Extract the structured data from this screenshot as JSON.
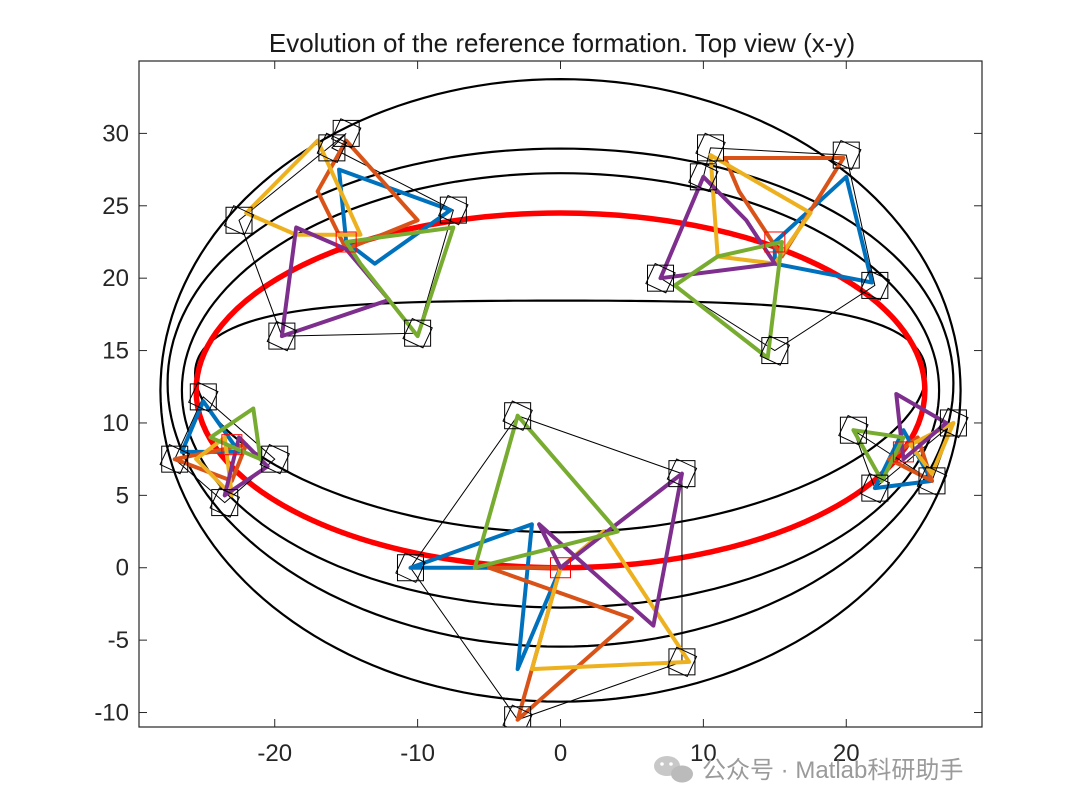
{
  "chart_data": {
    "type": "line",
    "title": "Evolution of the reference formation. Top view (x-y)",
    "xlabel": "",
    "ylabel": "",
    "xlim": [
      -29.5,
      29.5
    ],
    "ylim": [
      -11,
      35
    ],
    "x_ticks": [
      -20,
      -10,
      0,
      10,
      20
    ],
    "y_ticks": [
      -10,
      -5,
      0,
      5,
      10,
      15,
      20,
      25,
      30
    ],
    "x_tick_labels": [
      "-20",
      "-10",
      "0",
      "10",
      "20"
    ],
    "y_tick_labels": [
      "-10",
      "-5",
      "0",
      "5",
      "10",
      "15",
      "20",
      "25",
      "30"
    ],
    "grid": false,
    "reference_path": {
      "shape": "ellipse",
      "center": [
        0,
        12.25
      ],
      "radius_x": 25.5,
      "radius_y": 12.25,
      "color": "#ff0000"
    },
    "trajectories": [
      {
        "center": [
          0,
          12.25
        ],
        "rx": 25.5,
        "ry": 8.0,
        "dx": -1.0,
        "dy": 1.8
      },
      {
        "center": [
          0,
          12.25
        ],
        "rx": 26.5,
        "ry": 15.0,
        "dx": 0.0,
        "dy": 0.0
      },
      {
        "center": [
          0,
          12.25
        ],
        "rx": 27.5,
        "ry": 17.2,
        "dx": 0.0,
        "dy": 0.5
      },
      {
        "center": [
          0,
          12.25
        ],
        "rx": 28.0,
        "ry": 21.5,
        "dx": 0.0,
        "dy": 0.0
      }
    ],
    "formation_snapshots": [
      {
        "center": [
          -15.0,
          22.5
        ],
        "vehicles": [
          [
            -16.0,
            29.0
          ],
          [
            -7.5,
            24.7
          ],
          [
            -10.0,
            16.2
          ],
          [
            -19.5,
            16.0
          ],
          [
            -22.5,
            24.0
          ],
          [
            -15.0,
            30.0
          ]
        ],
        "polygons": [
          {
            "color": "#0072bd",
            "vertices": [
              [
                -15.5,
                27.5
              ],
              [
                -7.7,
                24.7
              ],
              [
                -13.0,
                21.0
              ],
              [
                -15.0,
                22.5
              ]
            ]
          },
          {
            "color": "#d95319",
            "vertices": [
              [
                -15.0,
                29.5
              ],
              [
                -10.0,
                24.0
              ],
              [
                -15.0,
                22.0
              ],
              [
                -17.0,
                26.0
              ]
            ]
          },
          {
            "color": "#edb120",
            "vertices": [
              [
                -22.0,
                24.5
              ],
              [
                -17.0,
                29.5
              ],
              [
                -14.0,
                23.0
              ],
              [
                -18.5,
                23.0
              ]
            ]
          },
          {
            "color": "#7e2f8e",
            "vertices": [
              [
                -18.5,
                23.5
              ],
              [
                -19.5,
                16.0
              ],
              [
                -12.0,
                18.5
              ],
              [
                -15.0,
                22.0
              ]
            ]
          },
          {
            "color": "#77ac30",
            "vertices": [
              [
                -15.0,
                22.5
              ],
              [
                -7.5,
                23.5
              ],
              [
                -10.0,
                16.0
              ],
              [
                -14.0,
                21.0
              ]
            ]
          }
        ]
      },
      {
        "center": [
          15.0,
          22.5
        ],
        "vehicles": [
          [
            10.5,
            29.0
          ],
          [
            20.0,
            28.5
          ],
          [
            22.0,
            19.5
          ],
          [
            15.0,
            15.0
          ],
          [
            7.0,
            20.0
          ],
          [
            10.0,
            27.0
          ]
        ],
        "polygons": [
          {
            "color": "#0072bd",
            "vertices": [
              [
                15.0,
                22.5
              ],
              [
                20.0,
                27.0
              ],
              [
                21.8,
                19.7
              ],
              [
                15.0,
                21.0
              ]
            ]
          },
          {
            "color": "#d95319",
            "vertices": [
              [
                11.5,
                28.3
              ],
              [
                19.8,
                28.3
              ],
              [
                15.5,
                21.5
              ],
              [
                12.5,
                26.0
              ]
            ]
          },
          {
            "color": "#edb120",
            "vertices": [
              [
                10.5,
                28.5
              ],
              [
                17.5,
                24.5
              ],
              [
                15.0,
                21.0
              ],
              [
                11.0,
                21.5
              ]
            ]
          },
          {
            "color": "#7e2f8e",
            "vertices": [
              [
                10.0,
                27.0
              ],
              [
                7.0,
                20.0
              ],
              [
                15.0,
                21.0
              ],
              [
                13.0,
                24.0
              ]
            ]
          },
          {
            "color": "#77ac30",
            "vertices": [
              [
                8.0,
                19.5
              ],
              [
                14.5,
                14.5
              ],
              [
                15.5,
                22.5
              ],
              [
                11.0,
                21.5
              ]
            ]
          }
        ]
      },
      {
        "center": [
          -23.0,
          8.5
        ],
        "vehicles": [
          [
            -25.0,
            11.8
          ],
          [
            -20.0,
            7.5
          ],
          [
            -23.5,
            4.5
          ],
          [
            -27.0,
            7.5
          ]
        ],
        "polygons": [
          {
            "color": "#0072bd",
            "vertices": [
              [
                -26.5,
                8.0
              ],
              [
                -25.0,
                11.5
              ],
              [
                -22.5,
                8.0
              ]
            ]
          },
          {
            "color": "#d95319",
            "vertices": [
              [
                -27.0,
                7.5
              ],
              [
                -22.0,
                8.5
              ],
              [
                -23.0,
                6.0
              ]
            ]
          },
          {
            "color": "#edb120",
            "vertices": [
              [
                -23.0,
                5.0
              ],
              [
                -23.5,
                9.0
              ],
              [
                -25.5,
                7.5
              ]
            ]
          },
          {
            "color": "#7e2f8e",
            "vertices": [
              [
                -20.5,
                7.0
              ],
              [
                -23.5,
                5.0
              ],
              [
                -22.5,
                9.0
              ]
            ]
          },
          {
            "color": "#77ac30",
            "vertices": [
              [
                -21.5,
                11.0
              ],
              [
                -24.5,
                9.0
              ],
              [
                -21.0,
                7.5
              ]
            ]
          }
        ]
      },
      {
        "center": [
          24.0,
          8.0
        ],
        "vehicles": [
          [
            27.5,
            10.0
          ],
          [
            26.0,
            6.0
          ],
          [
            20.5,
            9.5
          ],
          [
            22.0,
            5.5
          ]
        ],
        "polygons": [
          {
            "color": "#0072bd",
            "vertices": [
              [
                22.0,
                5.5
              ],
              [
                26.0,
                6.0
              ],
              [
                24.0,
                9.5
              ]
            ]
          },
          {
            "color": "#d95319",
            "vertices": [
              [
                26.0,
                6.0
              ],
              [
                25.0,
                9.0
              ],
              [
                23.0,
                7.5
              ]
            ]
          },
          {
            "color": "#edb120",
            "vertices": [
              [
                27.5,
                10.0
              ],
              [
                26.0,
                6.5
              ],
              [
                24.5,
                8.5
              ]
            ]
          },
          {
            "color": "#7e2f8e",
            "vertices": [
              [
                23.5,
                12.0
              ],
              [
                27.0,
                10.0
              ],
              [
                24.0,
                7.5
              ]
            ]
          },
          {
            "color": "#77ac30",
            "vertices": [
              [
                20.5,
                9.5
              ],
              [
                22.5,
                6.0
              ],
              [
                24.0,
                9.0
              ]
            ]
          }
        ]
      },
      {
        "center": [
          0.0,
          0.0
        ],
        "vehicles": [
          [
            -3.0,
            10.5
          ],
          [
            8.5,
            6.5
          ],
          [
            8.5,
            -6.5
          ],
          [
            -3.0,
            -10.5
          ],
          [
            -10.5,
            0.0
          ]
        ],
        "polygons": [
          {
            "color": "#0072bd",
            "vertices": [
              [
                -10.5,
                0.0
              ],
              [
                -2.0,
                3.0
              ],
              [
                -3.0,
                -7.0
              ],
              [
                0.0,
                0.0
              ]
            ]
          },
          {
            "color": "#d95319",
            "vertices": [
              [
                -3.0,
                -10.5
              ],
              [
                5.0,
                -3.5
              ],
              [
                -5.0,
                0.0
              ],
              [
                0.0,
                0.0
              ]
            ]
          },
          {
            "color": "#edb120",
            "vertices": [
              [
                -2.0,
                -7.0
              ],
              [
                9.0,
                -6.5
              ],
              [
                3.0,
                2.5
              ],
              [
                0.0,
                0.0
              ]
            ]
          },
          {
            "color": "#7e2f8e",
            "vertices": [
              [
                8.5,
                6.5
              ],
              [
                6.5,
                -4.0
              ],
              [
                -1.5,
                3.0
              ],
              [
                0.0,
                0.0
              ]
            ]
          },
          {
            "color": "#77ac30",
            "vertices": [
              [
                -3.0,
                10.5
              ],
              [
                4.0,
                2.5
              ],
              [
                -6.0,
                0.0
              ]
            ]
          }
        ]
      }
    ],
    "watermark": "公众号 · Matlab科研助手"
  }
}
